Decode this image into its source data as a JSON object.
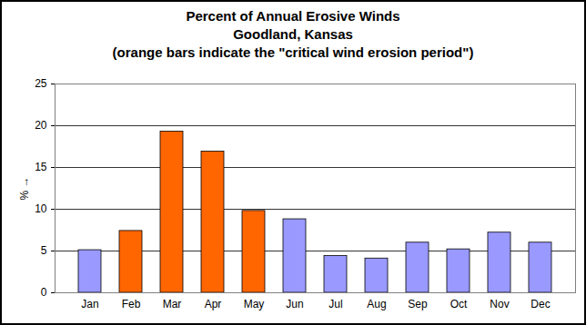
{
  "chart_data": {
    "type": "bar",
    "title": [
      "Percent of Annual Erosive Winds",
      "Goodland, Kansas"
    ],
    "subtitle": "(orange bars indicate the \"critical wind erosion period\")",
    "y_label": "%",
    "categories": [
      "Jan",
      "Feb",
      "Mar",
      "Apr",
      "May",
      "Jun",
      "Jul",
      "Aug",
      "Sep",
      "Oct",
      "Nov",
      "Dec"
    ],
    "values": [
      5.1,
      7.4,
      19.3,
      16.9,
      9.8,
      8.8,
      4.4,
      4.1,
      6.0,
      5.2,
      7.2,
      6.0
    ],
    "colors": [
      "#9999ff",
      "#ff6600",
      "#ff6600",
      "#ff6600",
      "#ff6600",
      "#9999ff",
      "#9999ff",
      "#9999ff",
      "#9999ff",
      "#9999ff",
      "#9999ff",
      "#9999ff"
    ],
    "ylim": [
      0,
      25
    ],
    "yticks": [
      0,
      5,
      10,
      15,
      20,
      25
    ],
    "grid": true
  }
}
